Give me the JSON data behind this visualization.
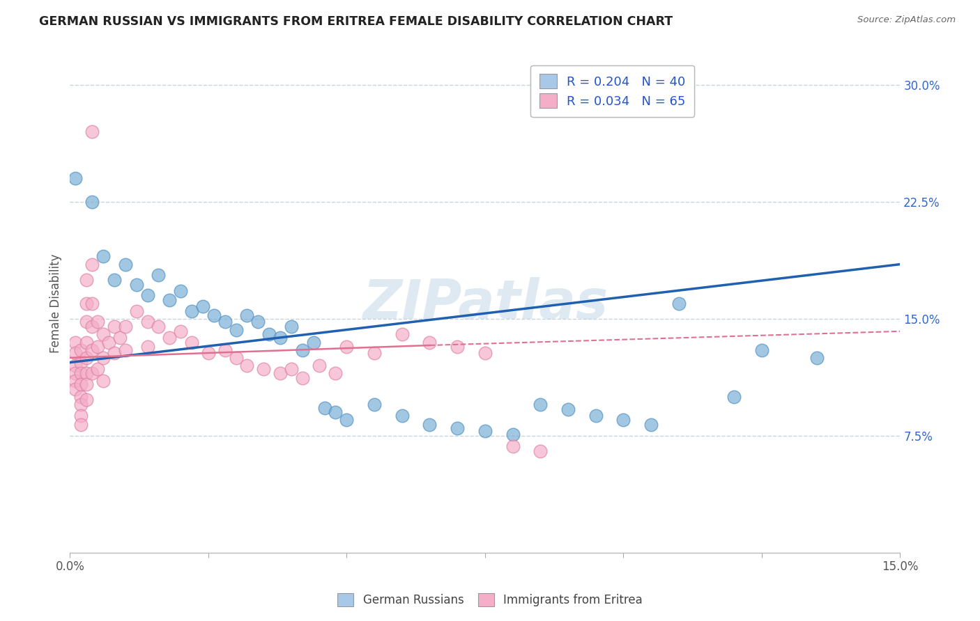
{
  "title": "GERMAN RUSSIAN VS IMMIGRANTS FROM ERITREA FEMALE DISABILITY CORRELATION CHART",
  "source_text": "Source: ZipAtlas.com",
  "ylabel": "Female Disability",
  "xlim": [
    0.0,
    0.15
  ],
  "ylim": [
    0.0,
    0.32
  ],
  "ytick_positions": [
    0.075,
    0.15,
    0.225,
    0.3
  ],
  "ytick_labels": [
    "7.5%",
    "15.0%",
    "22.5%",
    "30.0%"
  ],
  "legend_entries": [
    {
      "label": "R = 0.204   N = 40",
      "color": "#a8c8e8"
    },
    {
      "label": "R = 0.034   N = 65",
      "color": "#f4aec8"
    }
  ],
  "legend_bottom_entries": [
    {
      "label": "German Russians",
      "color": "#a8c8e8"
    },
    {
      "label": "Immigrants from Eritrea",
      "color": "#f4aec8"
    }
  ],
  "watermark": "ZIPatlas",
  "blue_marker_color": "#7ab0d8",
  "blue_edge_color": "#5090c0",
  "pink_marker_color": "#f4aec8",
  "pink_edge_color": "#e080a0",
  "blue_line_color": "#2060b0",
  "pink_line_color": "#e07090",
  "grid_color": "#c8d4dc",
  "blue_scatter": [
    [
      0.001,
      0.24
    ],
    [
      0.004,
      0.225
    ],
    [
      0.006,
      0.19
    ],
    [
      0.008,
      0.175
    ],
    [
      0.01,
      0.185
    ],
    [
      0.012,
      0.172
    ],
    [
      0.014,
      0.165
    ],
    [
      0.016,
      0.178
    ],
    [
      0.018,
      0.162
    ],
    [
      0.02,
      0.168
    ],
    [
      0.022,
      0.155
    ],
    [
      0.024,
      0.158
    ],
    [
      0.026,
      0.152
    ],
    [
      0.028,
      0.148
    ],
    [
      0.03,
      0.143
    ],
    [
      0.032,
      0.152
    ],
    [
      0.034,
      0.148
    ],
    [
      0.036,
      0.14
    ],
    [
      0.038,
      0.138
    ],
    [
      0.04,
      0.145
    ],
    [
      0.042,
      0.13
    ],
    [
      0.044,
      0.135
    ],
    [
      0.046,
      0.093
    ],
    [
      0.048,
      0.09
    ],
    [
      0.05,
      0.085
    ],
    [
      0.055,
      0.095
    ],
    [
      0.06,
      0.088
    ],
    [
      0.065,
      0.082
    ],
    [
      0.07,
      0.08
    ],
    [
      0.075,
      0.078
    ],
    [
      0.08,
      0.076
    ],
    [
      0.085,
      0.095
    ],
    [
      0.09,
      0.092
    ],
    [
      0.095,
      0.088
    ],
    [
      0.1,
      0.085
    ],
    [
      0.105,
      0.082
    ],
    [
      0.11,
      0.16
    ],
    [
      0.12,
      0.1
    ],
    [
      0.125,
      0.13
    ],
    [
      0.135,
      0.125
    ]
  ],
  "pink_scatter": [
    [
      0.001,
      0.135
    ],
    [
      0.001,
      0.128
    ],
    [
      0.001,
      0.12
    ],
    [
      0.001,
      0.115
    ],
    [
      0.001,
      0.11
    ],
    [
      0.001,
      0.105
    ],
    [
      0.002,
      0.13
    ],
    [
      0.002,
      0.122
    ],
    [
      0.002,
      0.115
    ],
    [
      0.002,
      0.108
    ],
    [
      0.002,
      0.1
    ],
    [
      0.002,
      0.095
    ],
    [
      0.002,
      0.088
    ],
    [
      0.002,
      0.082
    ],
    [
      0.003,
      0.175
    ],
    [
      0.003,
      0.16
    ],
    [
      0.003,
      0.148
    ],
    [
      0.003,
      0.135
    ],
    [
      0.003,
      0.125
    ],
    [
      0.003,
      0.115
    ],
    [
      0.003,
      0.108
    ],
    [
      0.003,
      0.098
    ],
    [
      0.004,
      0.27
    ],
    [
      0.004,
      0.185
    ],
    [
      0.004,
      0.16
    ],
    [
      0.004,
      0.145
    ],
    [
      0.004,
      0.13
    ],
    [
      0.004,
      0.115
    ],
    [
      0.005,
      0.148
    ],
    [
      0.005,
      0.132
    ],
    [
      0.005,
      0.118
    ],
    [
      0.006,
      0.14
    ],
    [
      0.006,
      0.125
    ],
    [
      0.006,
      0.11
    ],
    [
      0.007,
      0.135
    ],
    [
      0.008,
      0.145
    ],
    [
      0.008,
      0.128
    ],
    [
      0.009,
      0.138
    ],
    [
      0.01,
      0.145
    ],
    [
      0.01,
      0.13
    ],
    [
      0.012,
      0.155
    ],
    [
      0.014,
      0.148
    ],
    [
      0.014,
      0.132
    ],
    [
      0.016,
      0.145
    ],
    [
      0.018,
      0.138
    ],
    [
      0.02,
      0.142
    ],
    [
      0.022,
      0.135
    ],
    [
      0.025,
      0.128
    ],
    [
      0.028,
      0.13
    ],
    [
      0.03,
      0.125
    ],
    [
      0.032,
      0.12
    ],
    [
      0.035,
      0.118
    ],
    [
      0.038,
      0.115
    ],
    [
      0.04,
      0.118
    ],
    [
      0.042,
      0.112
    ],
    [
      0.045,
      0.12
    ],
    [
      0.048,
      0.115
    ],
    [
      0.05,
      0.132
    ],
    [
      0.055,
      0.128
    ],
    [
      0.06,
      0.14
    ],
    [
      0.065,
      0.135
    ],
    [
      0.07,
      0.132
    ],
    [
      0.075,
      0.128
    ],
    [
      0.08,
      0.068
    ],
    [
      0.085,
      0.065
    ]
  ]
}
